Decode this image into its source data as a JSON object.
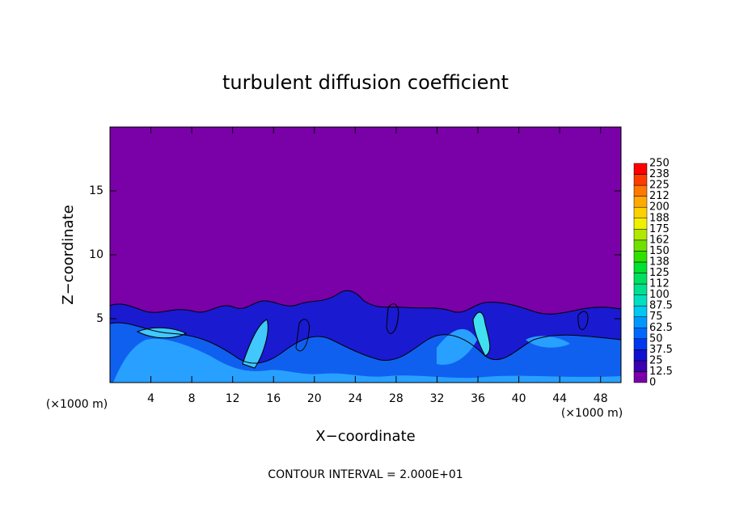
{
  "chart_data": {
    "type": "contour",
    "title": "turbulent diffusion coefficient",
    "x_label": "X−coordinate",
    "y_label": "Z−coordinate",
    "x_unit_label": "(×1000 m)",
    "footer": "CONTOUR INTERVAL = 2.000E+01",
    "background_color": "#7a00a8",
    "xlim": [
      0,
      50
    ],
    "ylim": [
      0,
      20
    ],
    "xticks": [
      4,
      8,
      12,
      16,
      20,
      24,
      28,
      32,
      36,
      40,
      44,
      48
    ],
    "yticks": [
      5,
      10,
      15
    ],
    "colorbar": {
      "levels": [
        0,
        12.5,
        25,
        37.5,
        50,
        62.5,
        75,
        87.5,
        100,
        112,
        125,
        138,
        150,
        162,
        175,
        188,
        200,
        212,
        225,
        238,
        250
      ],
      "colors": [
        "#7a00a8",
        "#3a00b0",
        "#1010d0",
        "#0038f0",
        "#0068ff",
        "#0098ff",
        "#00c8f0",
        "#00e0c0",
        "#00e090",
        "#00e060",
        "#00e030",
        "#30e000",
        "#70e000",
        "#b0e800",
        "#f0f000",
        "#ffd000",
        "#ffa800",
        "#ff7800",
        "#ff3c00",
        "#ff0000"
      ]
    }
  }
}
